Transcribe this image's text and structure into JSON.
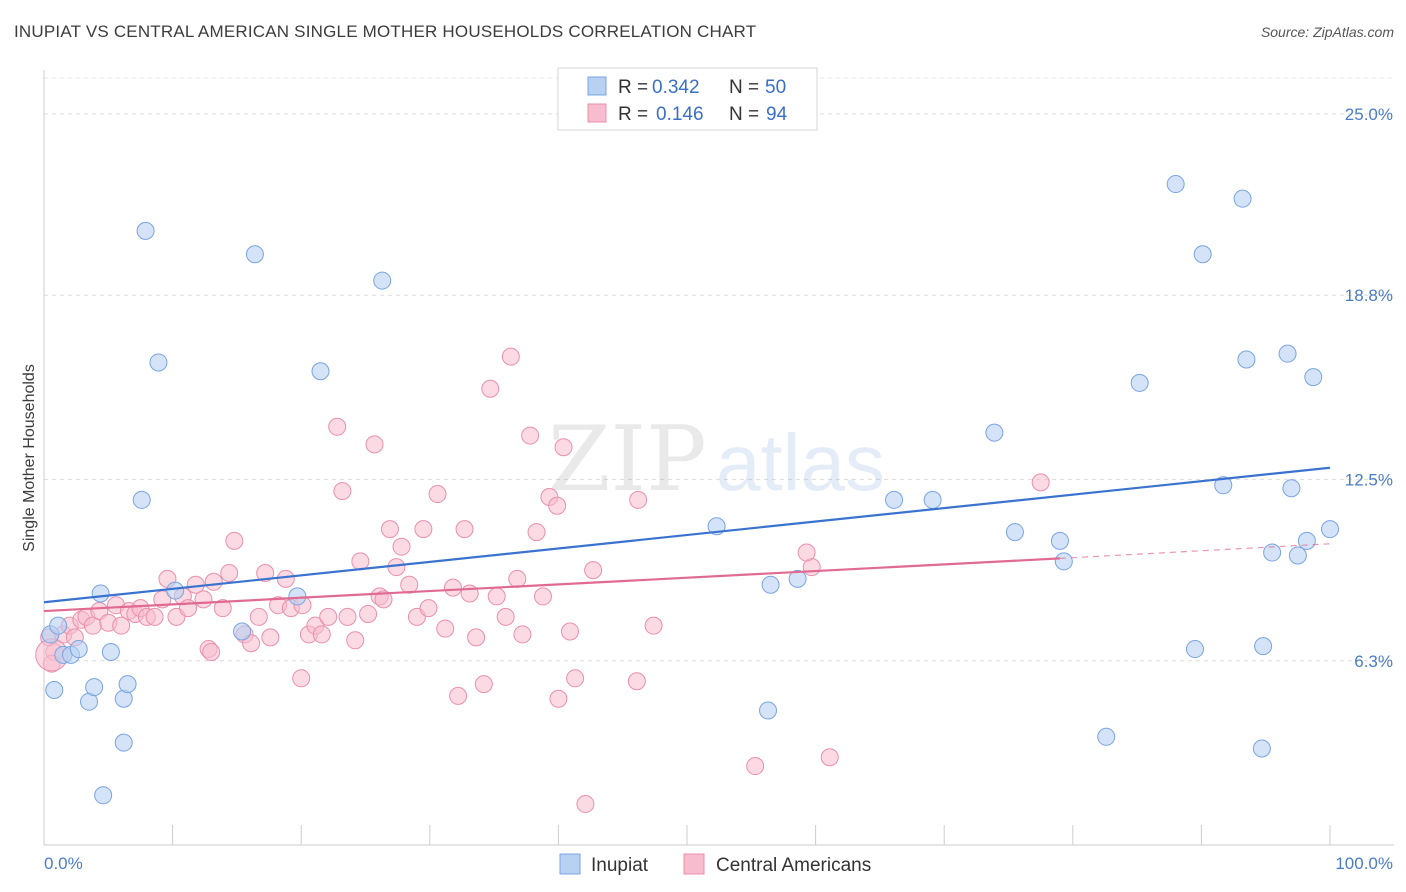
{
  "header": {
    "title": "INUPIAT VS CENTRAL AMERICAN SINGLE MOTHER HOUSEHOLDS CORRELATION CHART",
    "source": "Source: ZipAtlas.com"
  },
  "watermark": {
    "zip": "ZIP",
    "atlas": "atlas"
  },
  "legend": {
    "r_label": "R =",
    "n_label": "N =",
    "rows": [
      {
        "r": "0.342",
        "n": "50"
      },
      {
        "r": "0.146",
        "n": "94"
      }
    ]
  },
  "chart_data": {
    "type": "scatter",
    "title": "INUPIAT VS CENTRAL AMERICAN SINGLE MOTHER HOUSEHOLDS CORRELATION CHART",
    "ylabel": "Single Mother Households",
    "xlabel": "",
    "xlim": [
      0,
      100
    ],
    "ylim": [
      0,
      26.5
    ],
    "x_tick_labels": [
      "0.0%",
      "100.0%"
    ],
    "y_ticks": [
      {
        "value": 6.3,
        "label": "6.3%"
      },
      {
        "value": 12.5,
        "label": "12.5%"
      },
      {
        "value": 18.8,
        "label": "18.8%"
      },
      {
        "value": 25.0,
        "label": "25.0%"
      }
    ],
    "grid": "horizontal dashed",
    "legend_position": "top-center",
    "colors": {
      "inupiat_fill": "#b8d0f2",
      "inupiat_stroke": "#7aa4e0",
      "inupiat_line": "#3a73cf",
      "central_fill": "#f7bccd",
      "central_stroke": "#e990ac",
      "central_line": "#e06a92",
      "tick_text": "#4a7cc7"
    },
    "series": [
      {
        "name": "Inupiat",
        "trend": {
          "x": [
            0,
            100
          ],
          "y": [
            8.3,
            12.9
          ]
        },
        "points": [
          [
            0.5,
            7.2
          ],
          [
            1.1,
            7.5
          ],
          [
            1.5,
            6.5
          ],
          [
            2.1,
            6.5
          ],
          [
            2.7,
            6.7
          ],
          [
            4.4,
            8.6
          ],
          [
            5.2,
            6.6
          ],
          [
            0.8,
            5.3
          ],
          [
            3.5,
            4.9
          ],
          [
            3.9,
            5.4
          ],
          [
            6.2,
            5.0
          ],
          [
            6.5,
            5.5
          ],
          [
            6.2,
            3.5
          ],
          [
            4.6,
            1.7
          ],
          [
            7.6,
            11.8
          ],
          [
            7.9,
            21.0
          ],
          [
            8.9,
            16.5
          ],
          [
            10.2,
            8.7
          ],
          [
            15.4,
            7.3
          ],
          [
            16.4,
            20.2
          ],
          [
            19.7,
            8.5
          ],
          [
            21.5,
            16.2
          ],
          [
            26.3,
            19.3
          ],
          [
            52.3,
            10.9
          ],
          [
            56.3,
            4.6
          ],
          [
            56.5,
            8.9
          ],
          [
            58.6,
            9.1
          ],
          [
            66.1,
            11.8
          ],
          [
            69.1,
            11.8
          ],
          [
            73.9,
            14.1
          ],
          [
            75.5,
            10.7
          ],
          [
            79.0,
            10.4
          ],
          [
            79.3,
            9.7
          ],
          [
            82.6,
            3.7
          ],
          [
            85.2,
            15.8
          ],
          [
            88.0,
            22.6
          ],
          [
            89.5,
            6.7
          ],
          [
            90.1,
            20.2
          ],
          [
            91.7,
            12.3
          ],
          [
            93.2,
            22.1
          ],
          [
            93.5,
            16.6
          ],
          [
            94.7,
            3.3
          ],
          [
            94.8,
            6.8
          ],
          [
            95.5,
            10.0
          ],
          [
            96.7,
            16.8
          ],
          [
            97.0,
            12.2
          ],
          [
            97.5,
            9.9
          ],
          [
            98.2,
            10.4
          ],
          [
            98.7,
            16.0
          ],
          [
            100.0,
            10.8
          ]
        ]
      },
      {
        "name": "Central Americans",
        "trend": {
          "x": [
            0,
            79
          ],
          "y": [
            8.0,
            9.8
          ]
        },
        "trend_extension": {
          "x": [
            79,
            100
          ],
          "y": [
            9.8,
            10.3
          ]
        },
        "points": [
          [
            0.4,
            7.1
          ],
          [
            0.8,
            6.6
          ],
          [
            1.5,
            7.2
          ],
          [
            2.0,
            7.5
          ],
          [
            2.4,
            7.1
          ],
          [
            2.9,
            7.7
          ],
          [
            3.3,
            7.8
          ],
          [
            3.8,
            7.5
          ],
          [
            4.3,
            8.0
          ],
          [
            5.0,
            7.6
          ],
          [
            5.6,
            8.2
          ],
          [
            6.0,
            7.5
          ],
          [
            6.6,
            8.0
          ],
          [
            7.1,
            7.9
          ],
          [
            7.5,
            8.1
          ],
          [
            8.0,
            7.8
          ],
          [
            8.6,
            7.8
          ],
          [
            9.2,
            8.4
          ],
          [
            9.6,
            9.1
          ],
          [
            10.3,
            7.8
          ],
          [
            10.8,
            8.5
          ],
          [
            11.2,
            8.1
          ],
          [
            11.8,
            8.9
          ],
          [
            12.4,
            8.4
          ],
          [
            12.8,
            6.7
          ],
          [
            13.2,
            9.0
          ],
          [
            13.9,
            8.1
          ],
          [
            14.4,
            9.3
          ],
          [
            14.8,
            10.4
          ],
          [
            15.6,
            7.2
          ],
          [
            16.1,
            6.9
          ],
          [
            16.7,
            7.8
          ],
          [
            17.2,
            9.3
          ],
          [
            17.6,
            7.1
          ],
          [
            18.2,
            8.2
          ],
          [
            18.8,
            9.1
          ],
          [
            19.2,
            8.1
          ],
          [
            20.1,
            8.2
          ],
          [
            20.6,
            7.2
          ],
          [
            21.1,
            7.5
          ],
          [
            21.6,
            7.2
          ],
          [
            22.1,
            7.8
          ],
          [
            22.8,
            14.3
          ],
          [
            23.2,
            12.1
          ],
          [
            23.6,
            7.8
          ],
          [
            24.2,
            7.0
          ],
          [
            24.6,
            9.7
          ],
          [
            25.2,
            7.9
          ],
          [
            25.7,
            13.7
          ],
          [
            26.1,
            8.5
          ],
          [
            26.4,
            8.4
          ],
          [
            26.9,
            10.8
          ],
          [
            27.4,
            9.5
          ],
          [
            27.8,
            10.2
          ],
          [
            28.4,
            8.9
          ],
          [
            29.0,
            7.8
          ],
          [
            29.5,
            10.8
          ],
          [
            29.9,
            8.1
          ],
          [
            30.6,
            12.0
          ],
          [
            31.2,
            7.4
          ],
          [
            31.8,
            8.8
          ],
          [
            32.2,
            5.1
          ],
          [
            32.7,
            10.8
          ],
          [
            33.1,
            8.6
          ],
          [
            33.6,
            7.1
          ],
          [
            34.2,
            5.5
          ],
          [
            34.7,
            15.6
          ],
          [
            35.2,
            8.5
          ],
          [
            35.9,
            7.8
          ],
          [
            36.3,
            16.7
          ],
          [
            36.8,
            9.1
          ],
          [
            37.2,
            7.2
          ],
          [
            37.8,
            14.0
          ],
          [
            38.3,
            10.7
          ],
          [
            38.8,
            8.5
          ],
          [
            39.3,
            11.9
          ],
          [
            39.9,
            11.6
          ],
          [
            40.4,
            13.6
          ],
          [
            40.9,
            7.3
          ],
          [
            41.3,
            5.7
          ],
          [
            42.1,
            1.4
          ],
          [
            42.7,
            9.4
          ],
          [
            46.2,
            11.8
          ],
          [
            47.4,
            7.5
          ],
          [
            46.1,
            5.6
          ],
          [
            40.0,
            5.0
          ],
          [
            20.0,
            5.7
          ],
          [
            13.0,
            6.6
          ],
          [
            59.7,
            9.5
          ],
          [
            59.3,
            10.0
          ],
          [
            55.3,
            2.7
          ],
          [
            61.1,
            3.0
          ],
          [
            77.5,
            12.4
          ],
          [
            0.6,
            6.2
          ]
        ]
      }
    ]
  },
  "bottom_legend": {
    "items": [
      {
        "label": "Inupiat"
      },
      {
        "label": "Central Americans"
      }
    ]
  }
}
